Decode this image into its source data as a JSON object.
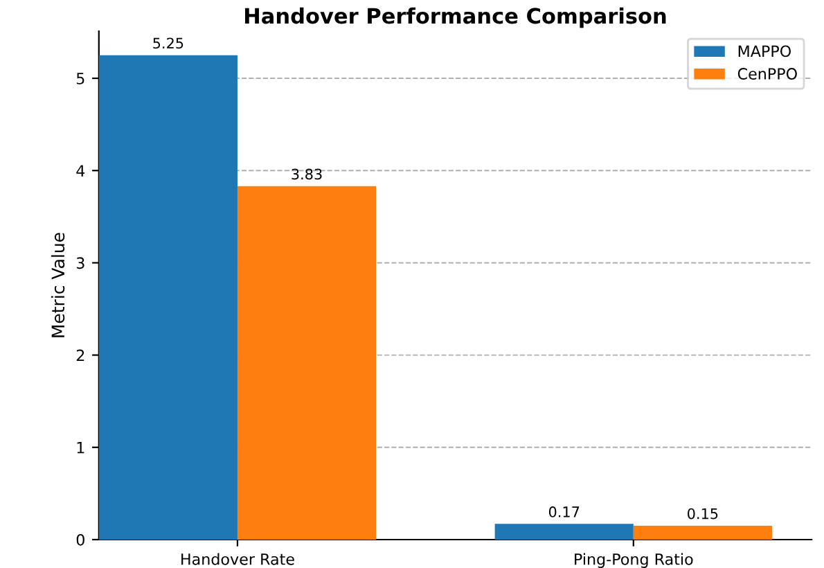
{
  "chart_data": {
    "type": "bar",
    "title": "Handover Performance Comparison",
    "ylabel": "Metric Value",
    "categories": [
      "Handover Rate",
      "Ping-Pong Ratio"
    ],
    "series": [
      {
        "name": "MAPPO",
        "color": "#1f77b4",
        "values": [
          5.25,
          0.17
        ]
      },
      {
        "name": "CenPPO",
        "color": "#ff7f0e",
        "values": [
          3.83,
          0.15
        ]
      }
    ],
    "ylim": [
      0,
      5.51
    ],
    "yticks": [
      0,
      1,
      2,
      3,
      4,
      5
    ],
    "grid": "y",
    "legend": "top right",
    "data_labels": true
  }
}
